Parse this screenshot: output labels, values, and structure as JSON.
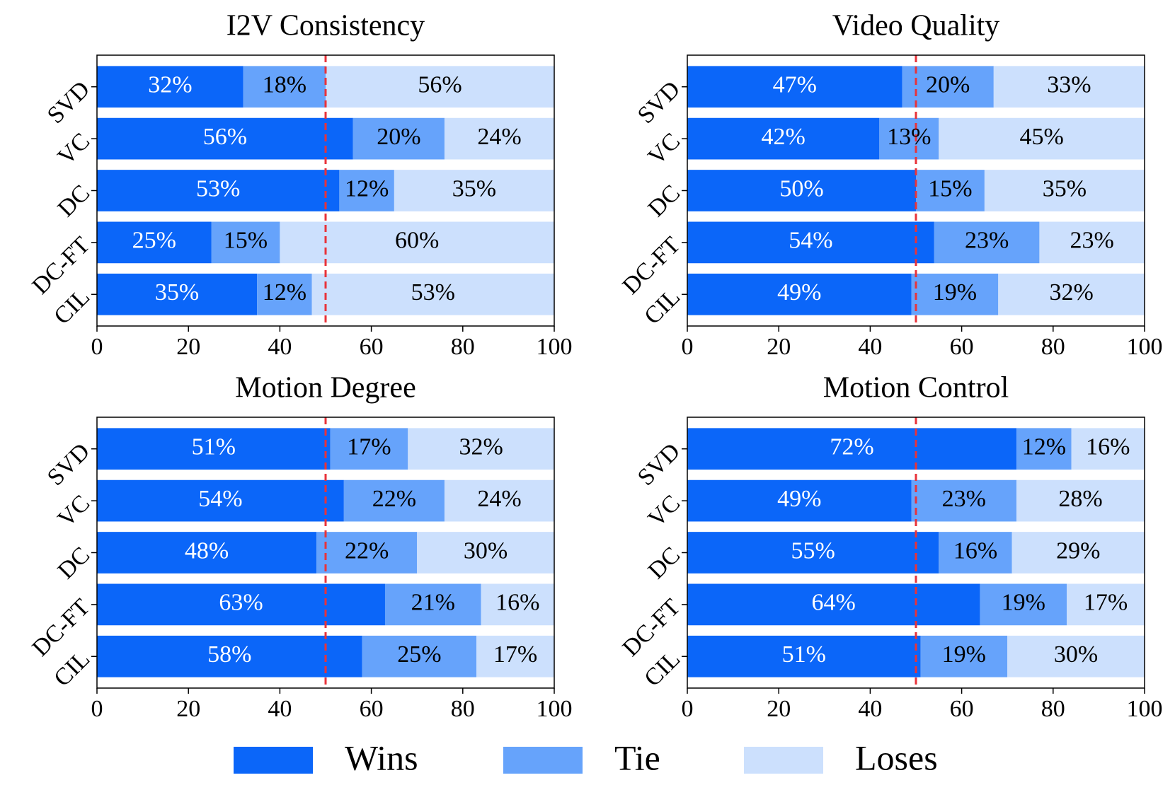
{
  "chart_data": [
    {
      "type": "stacked-barh",
      "title": "I2V Consistency",
      "categories": [
        "SVD",
        "VC",
        "DC",
        "DC-FT",
        "CIL"
      ],
      "series": [
        {
          "name": "Wins",
          "color": "#0b66f9",
          "values": [
            32,
            56,
            53,
            25,
            35
          ],
          "value_labels": [
            "32%",
            "56%",
            "53%",
            "25%",
            "35%"
          ]
        },
        {
          "name": "Tie",
          "color": "#66a3fb",
          "values": [
            18,
            20,
            12,
            15,
            12
          ],
          "value_labels": [
            "18%",
            "20%",
            "12%",
            "15%",
            "12%"
          ]
        },
        {
          "name": "Loses",
          "color": "#cce0fd",
          "values": [
            56,
            24,
            35,
            60,
            53
          ],
          "value_labels": [
            "56%",
            "24%",
            "35%",
            "60%",
            "53%"
          ]
        }
      ],
      "xlim": [
        0,
        100
      ],
      "xticks": [
        0,
        20,
        40,
        60,
        80,
        100
      ],
      "reference_line": 50,
      "reference_color": "#e8333a"
    },
    {
      "type": "stacked-barh",
      "title": "Video Quality",
      "categories": [
        "SVD",
        "VC",
        "DC",
        "DC-FT",
        "CIL"
      ],
      "series": [
        {
          "color": "#0b66f9",
          "values": [
            47,
            42,
            50,
            54,
            49
          ],
          "value_labels": [
            "47%",
            "42%",
            "50%",
            "54%",
            "49%"
          ]
        },
        {
          "color": "#66a3fb",
          "values": [
            20,
            13,
            15,
            23,
            19
          ],
          "value_labels": [
            "20%",
            "13%",
            "15%",
            "23%",
            "19%"
          ]
        },
        {
          "color": "#cce0fd",
          "values": [
            33,
            45,
            35,
            23,
            32
          ],
          "value_labels": [
            "33%",
            "45%",
            "35%",
            "23%",
            "32%"
          ]
        }
      ],
      "xlim": [
        0,
        100
      ],
      "xticks": [
        0,
        20,
        40,
        60,
        80,
        100
      ],
      "reference_line": 50,
      "reference_color": "#e8333a"
    },
    {
      "type": "stacked-barh",
      "title": "Motion Degree",
      "categories": [
        "SVD",
        "VC",
        "DC",
        "DC-FT",
        "CIL"
      ],
      "series": [
        {
          "color": "#0b66f9",
          "values": [
            51,
            54,
            48,
            63,
            58
          ],
          "value_labels": [
            "51%",
            "54%",
            "48%",
            "63%",
            "58%"
          ]
        },
        {
          "color": "#66a3fb",
          "values": [
            17,
            22,
            22,
            21,
            25
          ],
          "value_labels": [
            "17%",
            "22%",
            "22%",
            "21%",
            "25%"
          ]
        },
        {
          "color": "#cce0fd",
          "values": [
            32,
            24,
            30,
            16,
            17
          ],
          "value_labels": [
            "32%",
            "24%",
            "30%",
            "16%",
            "17%"
          ]
        }
      ],
      "xlim": [
        0,
        100
      ],
      "xticks": [
        0,
        20,
        40,
        60,
        80,
        100
      ],
      "reference_line": 50,
      "reference_color": "#e8333a"
    },
    {
      "type": "stacked-barh",
      "title": "Motion Control",
      "categories": [
        "SVD",
        "VC",
        "DC",
        "DC-FT",
        "CIL"
      ],
      "series": [
        {
          "color": "#0b66f9",
          "values": [
            72,
            49,
            55,
            64,
            51
          ],
          "value_labels": [
            "72%",
            "49%",
            "55%",
            "64%",
            "51%"
          ]
        },
        {
          "color": "#66a3fb",
          "values": [
            12,
            23,
            16,
            19,
            19
          ],
          "value_labels": [
            "12%",
            "23%",
            "16%",
            "19%",
            "19%"
          ]
        },
        {
          "color": "#cce0fd",
          "values": [
            16,
            28,
            29,
            17,
            30
          ],
          "value_labels": [
            "16%",
            "28%",
            "29%",
            "17%",
            "30%"
          ]
        }
      ],
      "xlim": [
        0,
        100
      ],
      "xticks": [
        0,
        20,
        40,
        60,
        80,
        100
      ],
      "reference_line": 50,
      "reference_color": "#e8333a"
    }
  ]
}
